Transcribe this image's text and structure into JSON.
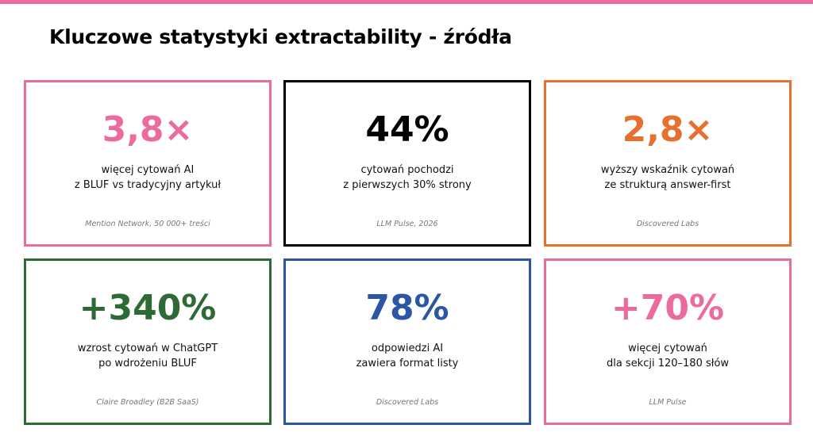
{
  "accent": "#ec6b9e",
  "title": "Kluczowe statystyki extractability - źródła",
  "cards": [
    {
      "value": "3,8×",
      "line1": "więcej cytowań AI",
      "line2": "z BLUF vs tradycyjny artykuł",
      "source": "Mention Network, 50 000+ treści",
      "color": "#ec6b9e"
    },
    {
      "value": "44%",
      "line1": "cytowań pochodzi",
      "line2": "z pierwszych 30% strony",
      "source": "LLM Pulse, 2026",
      "color": "#000000"
    },
    {
      "value": "2,8×",
      "line1": "wyższy wskaźnik cytowań",
      "line2": "ze strukturą answer-first",
      "source": "Discovered Labs",
      "color": "#e8702f"
    },
    {
      "value": "+340%",
      "line1": "wzrost cytowań w ChatGPT",
      "line2": "po wdrożeniu BLUF",
      "source": "Claire Broadley (B2B SaaS)",
      "color": "#2e6b34"
    },
    {
      "value": "78%",
      "line1": "odpowiedzi AI",
      "line2": "zawiera format listy",
      "source": "Discovered Labs",
      "color": "#2c55a3"
    },
    {
      "value": "+70%",
      "line1": "więcej cytowań",
      "line2": "dla sekcji 120–180 słów",
      "source": "LLM Pulse",
      "color": "#ec6b9e"
    }
  ]
}
